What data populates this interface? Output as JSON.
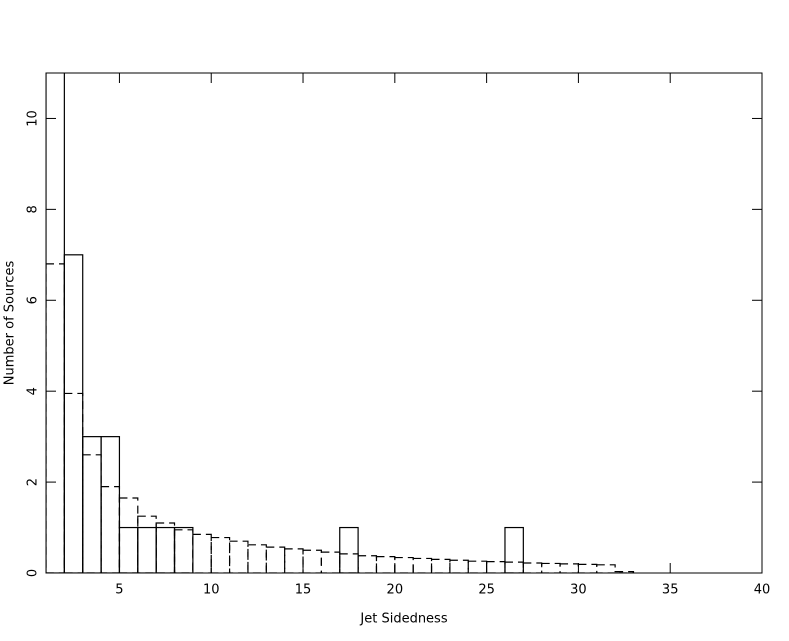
{
  "chart_data": {
    "type": "histogram",
    "x_label": "Jet Sidedness",
    "y_label": "Number of Sources",
    "bins": [
      1,
      2,
      3,
      4,
      5,
      6,
      7,
      8,
      9,
      10,
      11,
      12,
      13,
      14,
      15,
      16,
      17,
      18,
      19,
      20,
      21,
      22,
      23,
      24,
      25,
      26,
      27,
      28,
      29,
      30,
      31,
      32,
      33,
      34,
      35,
      36,
      37,
      38,
      39,
      40
    ],
    "series": [
      {
        "color": "#000000",
        "line_style": "solid",
        "values": [
          12,
          7,
          3,
          3,
          1,
          1,
          1,
          1,
          0,
          0,
          0,
          0,
          0,
          0,
          0,
          0,
          1,
          0,
          0,
          0,
          0,
          0,
          0,
          0,
          0,
          1,
          0,
          0,
          0,
          0,
          0,
          0,
          0,
          0,
          0,
          0,
          0,
          0,
          0
        ]
      },
      {
        "color": "#000000",
        "line_style": "dashed",
        "values": [
          6.8,
          3.95,
          2.6,
          1.9,
          1.65,
          1.25,
          1.1,
          0.95,
          0.85,
          0.78,
          0.7,
          0.62,
          0.57,
          0.53,
          0.5,
          0.46,
          0.42,
          0.38,
          0.36,
          0.34,
          0.32,
          0.3,
          0.28,
          0.26,
          0.25,
          0.24,
          0.22,
          0.21,
          0.2,
          0.19,
          0.18,
          0.03,
          0,
          0,
          0,
          0,
          0,
          0,
          0
        ]
      }
    ],
    "xlim": [
      1,
      40
    ],
    "ylim": [
      0,
      11
    ],
    "xticks": [
      5,
      10,
      15,
      20,
      25,
      30,
      35,
      40
    ],
    "yticks": [
      0,
      2,
      4,
      6,
      8,
      10
    ]
  }
}
